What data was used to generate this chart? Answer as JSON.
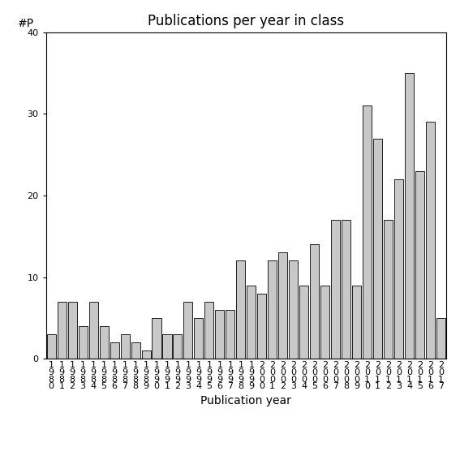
{
  "title": "Publications per year in class",
  "xlabel": "Publication year",
  "ylabel": "#P",
  "years": [
    1980,
    1981,
    1982,
    1983,
    1984,
    1985,
    1986,
    1987,
    1988,
    1989,
    1990,
    1991,
    1992,
    1993,
    1994,
    1995,
    1996,
    1997,
    1998,
    1999,
    2000,
    2001,
    2002,
    2003,
    2004,
    2005,
    2006,
    2007,
    2008,
    2009,
    2010,
    2011,
    2012,
    2013,
    2014,
    2015,
    2016,
    2017
  ],
  "values": [
    3,
    7,
    7,
    4,
    7,
    4,
    2,
    3,
    2,
    1,
    5,
    3,
    3,
    7,
    5,
    7,
    6,
    6,
    12,
    9,
    8,
    12,
    13,
    12,
    9,
    14,
    9,
    17,
    17,
    9,
    31,
    27,
    17,
    22,
    35,
    23,
    29,
    5
  ],
  "bar_color": "#c8c8c8",
  "bar_edgecolor": "#000000",
  "ylim": [
    0,
    40
  ],
  "yticks": [
    0,
    10,
    20,
    30,
    40
  ],
  "bg_color": "#ffffff",
  "title_fontsize": 12,
  "label_fontsize": 10,
  "tick_fontsize": 8
}
